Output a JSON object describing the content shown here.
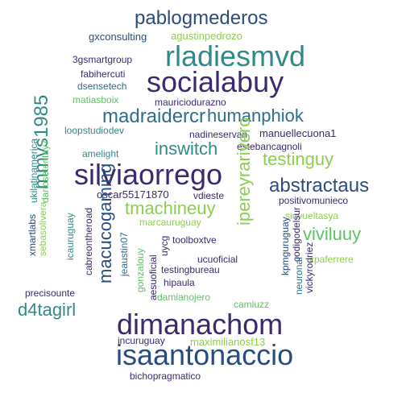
{
  "palette": {
    "c1": "#2a4d7d",
    "c2": "#2d6f8a",
    "c3": "#2f8b87",
    "c4": "#3d2a6e",
    "c5": "#5cc463",
    "c6": "#8ccf4e",
    "c7": "#22926f"
  },
  "words": [
    "pablogmederos",
    "gxconsulting",
    "agustinpedrozo",
    "rladiesmvd",
    "3gsmartgroup",
    "fabihercuti",
    "socialabuy",
    "dsensetech",
    "matiasboix",
    "mauriciodurazno",
    "madraidercr",
    "humanphiok",
    "loopstudiodev",
    "nadineservan",
    "manuellecuona1",
    "inswitch",
    "mmvs1985",
    "ukilatinamerica",
    "dariosetentay7",
    "amelight",
    "estebancagnoli",
    "testinguy",
    "silviaorrego",
    "ipereyrarivero",
    "abstractaus",
    "oscar55171870",
    "vdieste",
    "positivomunieco",
    "tmachineuy",
    "xmartlabs",
    "sebasolivera",
    "icauruguay",
    "cabreontheroad",
    "marcauruguay",
    "codigodelsur",
    "viviluuy",
    "sinvueltasya",
    "kpmguruguay",
    "macucogaming",
    "jeaustin07",
    "gonzalouy",
    "uycg",
    "toolboxtve",
    "ucuoficial",
    "testingbureau",
    "aesuoficial",
    "hipaula",
    "vickyrodriez",
    "neuronaf",
    "cpaferrere",
    "precisounte",
    "d4tagirl",
    "damianojero",
    "camluzz",
    "dimanachom",
    "incuruguay",
    "maximilianosf13",
    "isaantonaccio",
    "bichopragmatico"
  ]
}
